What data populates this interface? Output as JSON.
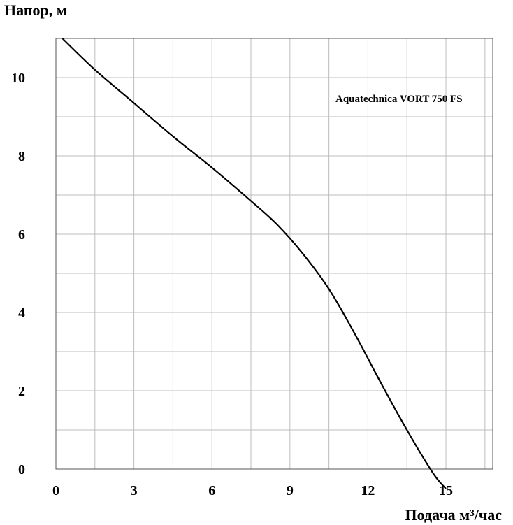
{
  "chart_data": {
    "type": "line",
    "ylabel": "Напор, м",
    "xlabel": "Подача  м³/час",
    "xlim": [
      0,
      16.8
    ],
    "ylim": [
      0,
      11
    ],
    "x_ticks": [
      0,
      3,
      6,
      9,
      12,
      15
    ],
    "y_ticks": [
      0,
      2,
      4,
      6,
      8,
      10
    ],
    "x_tick_labels": [
      "0",
      "3",
      "6",
      "9",
      "12",
      "15"
    ],
    "y_tick_labels": [
      "0",
      "2",
      "4",
      "6",
      "8",
      "10"
    ],
    "x_grid": [
      1.5,
      3,
      4.5,
      6,
      7.5,
      9,
      10.5,
      12,
      13.5,
      15,
      16.5
    ],
    "y_grid": [
      1,
      2,
      3,
      4,
      5,
      6,
      7,
      8,
      9,
      10,
      11
    ],
    "grid": true,
    "series": [
      {
        "name": "Aquatechnica VORT 750 FS",
        "color": "#000000",
        "x": [
          0.25,
          1.5,
          3,
          4.5,
          6,
          7.5,
          8.5,
          9.5,
          10.5,
          11.5,
          12.5,
          13.5,
          14.5,
          15.0
        ],
        "y": [
          11.0,
          10.2,
          9.35,
          8.5,
          7.7,
          6.85,
          6.25,
          5.5,
          4.6,
          3.45,
          2.2,
          1.0,
          -0.1,
          -0.5
        ]
      }
    ]
  }
}
